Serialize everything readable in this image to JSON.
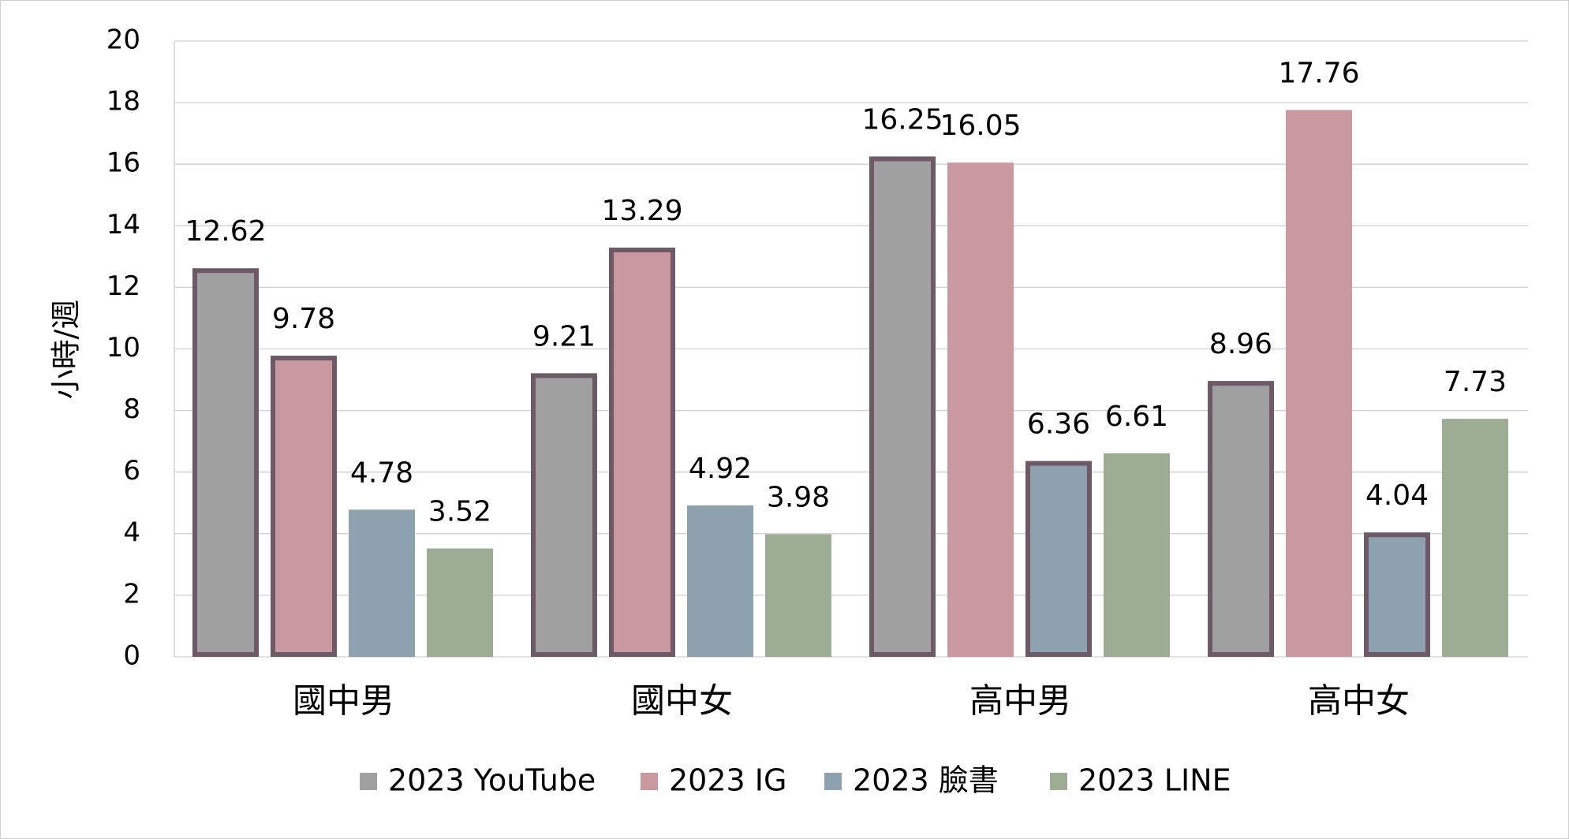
{
  "chart_data": {
    "type": "bar",
    "y_label": "小時/週",
    "categories": [
      "國中男",
      "國中女",
      "高中男",
      "高中女"
    ],
    "series": [
      {
        "name": "2023 YouTube",
        "color": "#a0a0a0",
        "values": [
          12.62,
          9.21,
          16.25,
          8.96
        ],
        "outlined": [
          true,
          true,
          true,
          true
        ]
      },
      {
        "name": "2023 IG",
        "color": "#c9999f",
        "values": [
          9.78,
          13.29,
          16.05,
          17.76
        ],
        "outlined": [
          true,
          true,
          false,
          false
        ]
      },
      {
        "name": "2023 臉書",
        "color": "#8ea1ae",
        "values": [
          4.78,
          4.92,
          6.36,
          4.04
        ],
        "outlined": [
          false,
          false,
          true,
          true
        ]
      },
      {
        "name": "2023 LINE",
        "color": "#9cad93",
        "values": [
          3.52,
          3.98,
          6.61,
          7.73
        ],
        "outlined": [
          false,
          false,
          false,
          false
        ]
      }
    ],
    "outline_color": "#6e5a66",
    "ylim": [
      0,
      20
    ],
    "yticks": [
      0,
      2,
      4,
      6,
      8,
      10,
      12,
      14,
      16,
      18,
      20
    ],
    "grid": true,
    "legend": "bottom"
  }
}
